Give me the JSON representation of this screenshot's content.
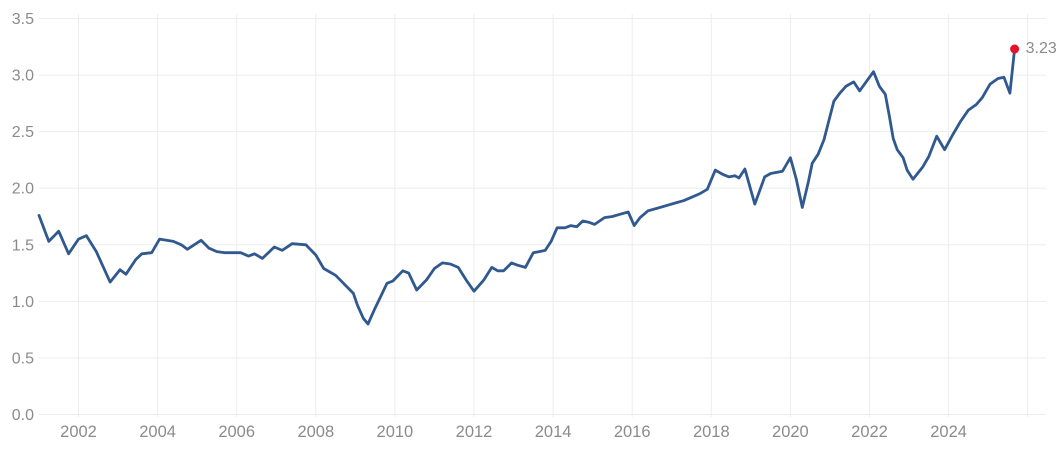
{
  "chart_data": {
    "type": "line",
    "title": "",
    "xlabel": "",
    "ylabel": "",
    "legend": false,
    "grid": true,
    "ylim": [
      0.0,
      3.5
    ],
    "xlim": [
      2001.0,
      2026.2
    ],
    "yticks": [
      {
        "value": 0.0,
        "label": "0.0"
      },
      {
        "value": 0.5,
        "label": "0.5"
      },
      {
        "value": 1.0,
        "label": "1.0"
      },
      {
        "value": 1.5,
        "label": "1.5"
      },
      {
        "value": 2.0,
        "label": "2.0"
      },
      {
        "value": 2.5,
        "label": "2.5"
      },
      {
        "value": 3.0,
        "label": "3.0"
      },
      {
        "value": 3.5,
        "label": "3.5"
      }
    ],
    "xticks": [
      {
        "year": 2002,
        "label": "2002"
      },
      {
        "year": 2004,
        "label": "2004"
      },
      {
        "year": 2006,
        "label": "2006"
      },
      {
        "year": 2008,
        "label": "2008"
      },
      {
        "year": 2010,
        "label": "2010"
      },
      {
        "year": 2012,
        "label": "2012"
      },
      {
        "year": 2014,
        "label": "2014"
      },
      {
        "year": 2016,
        "label": "2016"
      },
      {
        "year": 2018,
        "label": "2018"
      },
      {
        "year": 2020,
        "label": "2020"
      },
      {
        "year": 2022,
        "label": "2022"
      },
      {
        "year": 2024,
        "label": "2024"
      },
      {
        "year": 2026,
        "label": ""
      }
    ],
    "points": [
      [
        2001.0,
        1.76
      ],
      [
        2001.25,
        1.53
      ],
      [
        2001.5,
        1.62
      ],
      [
        2001.75,
        1.42
      ],
      [
        2002.0,
        1.55
      ],
      [
        2002.2,
        1.58
      ],
      [
        2002.45,
        1.44
      ],
      [
        2002.8,
        1.17
      ],
      [
        2003.05,
        1.28
      ],
      [
        2003.2,
        1.24
      ],
      [
        2003.45,
        1.37
      ],
      [
        2003.6,
        1.42
      ],
      [
        2003.85,
        1.43
      ],
      [
        2004.05,
        1.55
      ],
      [
        2004.4,
        1.53
      ],
      [
        2004.6,
        1.5
      ],
      [
        2004.75,
        1.46
      ],
      [
        2005.1,
        1.54
      ],
      [
        2005.3,
        1.47
      ],
      [
        2005.5,
        1.44
      ],
      [
        2005.7,
        1.43
      ],
      [
        2006.1,
        1.43
      ],
      [
        2006.3,
        1.4
      ],
      [
        2006.45,
        1.42
      ],
      [
        2006.65,
        1.38
      ],
      [
        2006.95,
        1.48
      ],
      [
        2007.15,
        1.45
      ],
      [
        2007.4,
        1.51
      ],
      [
        2007.75,
        1.5
      ],
      [
        2008.0,
        1.41
      ],
      [
        2008.2,
        1.29
      ],
      [
        2008.35,
        1.26
      ],
      [
        2008.5,
        1.23
      ],
      [
        2008.7,
        1.16
      ],
      [
        2008.95,
        1.07
      ],
      [
        2009.05,
        0.97
      ],
      [
        2009.2,
        0.85
      ],
      [
        2009.32,
        0.8
      ],
      [
        2009.5,
        0.94
      ],
      [
        2009.65,
        1.05
      ],
      [
        2009.8,
        1.16
      ],
      [
        2009.95,
        1.18
      ],
      [
        2010.2,
        1.27
      ],
      [
        2010.35,
        1.25
      ],
      [
        2010.55,
        1.1
      ],
      [
        2010.8,
        1.19
      ],
      [
        2011.0,
        1.29
      ],
      [
        2011.2,
        1.34
      ],
      [
        2011.4,
        1.33
      ],
      [
        2011.6,
        1.3
      ],
      [
        2011.8,
        1.19
      ],
      [
        2012.0,
        1.09
      ],
      [
        2012.25,
        1.19
      ],
      [
        2012.45,
        1.3
      ],
      [
        2012.6,
        1.27
      ],
      [
        2012.75,
        1.27
      ],
      [
        2012.95,
        1.34
      ],
      [
        2013.1,
        1.32
      ],
      [
        2013.3,
        1.3
      ],
      [
        2013.5,
        1.43
      ],
      [
        2013.65,
        1.44
      ],
      [
        2013.8,
        1.45
      ],
      [
        2013.95,
        1.53
      ],
      [
        2014.1,
        1.65
      ],
      [
        2014.3,
        1.65
      ],
      [
        2014.45,
        1.67
      ],
      [
        2014.6,
        1.66
      ],
      [
        2014.75,
        1.71
      ],
      [
        2014.9,
        1.7
      ],
      [
        2015.05,
        1.68
      ],
      [
        2015.3,
        1.74
      ],
      [
        2015.5,
        1.75
      ],
      [
        2015.7,
        1.77
      ],
      [
        2015.9,
        1.79
      ],
      [
        2016.05,
        1.67
      ],
      [
        2016.2,
        1.74
      ],
      [
        2016.4,
        1.8
      ],
      [
        2016.6,
        1.82
      ],
      [
        2016.9,
        1.85
      ],
      [
        2017.1,
        1.87
      ],
      [
        2017.3,
        1.89
      ],
      [
        2017.5,
        1.92
      ],
      [
        2017.7,
        1.95
      ],
      [
        2017.9,
        1.99
      ],
      [
        2018.1,
        2.16
      ],
      [
        2018.3,
        2.12
      ],
      [
        2018.45,
        2.1
      ],
      [
        2018.6,
        2.11
      ],
      [
        2018.7,
        2.09
      ],
      [
        2018.85,
        2.17
      ],
      [
        2019.1,
        1.86
      ],
      [
        2019.35,
        2.1
      ],
      [
        2019.5,
        2.13
      ],
      [
        2019.8,
        2.15
      ],
      [
        2020.0,
        2.27
      ],
      [
        2020.15,
        2.08
      ],
      [
        2020.3,
        1.83
      ],
      [
        2020.45,
        2.05
      ],
      [
        2020.55,
        2.22
      ],
      [
        2020.7,
        2.3
      ],
      [
        2020.85,
        2.43
      ],
      [
        2021.1,
        2.77
      ],
      [
        2021.25,
        2.84
      ],
      [
        2021.4,
        2.9
      ],
      [
        2021.6,
        2.94
      ],
      [
        2021.75,
        2.86
      ],
      [
        2022.1,
        3.03
      ],
      [
        2022.25,
        2.9
      ],
      [
        2022.4,
        2.83
      ],
      [
        2022.5,
        2.64
      ],
      [
        2022.6,
        2.44
      ],
      [
        2022.7,
        2.34
      ],
      [
        2022.85,
        2.27
      ],
      [
        2022.95,
        2.16
      ],
      [
        2023.1,
        2.08
      ],
      [
        2023.35,
        2.19
      ],
      [
        2023.5,
        2.28
      ],
      [
        2023.7,
        2.46
      ],
      [
        2023.9,
        2.34
      ],
      [
        2024.1,
        2.47
      ],
      [
        2024.3,
        2.59
      ],
      [
        2024.5,
        2.69
      ],
      [
        2024.7,
        2.74
      ],
      [
        2024.85,
        2.8
      ],
      [
        2025.05,
        2.92
      ],
      [
        2025.25,
        2.97
      ],
      [
        2025.4,
        2.98
      ],
      [
        2025.55,
        2.84
      ],
      [
        2025.67,
        3.23
      ]
    ],
    "end_point": {
      "x": 2025.67,
      "y": 3.23,
      "label": "3.23"
    },
    "colors": {
      "line": "#30598f",
      "dot": "#e8112d",
      "annotation": "#8c8c8c",
      "grid": "#ededed",
      "tick_label": "#8b8b8b",
      "background": "#ffffff"
    }
  }
}
